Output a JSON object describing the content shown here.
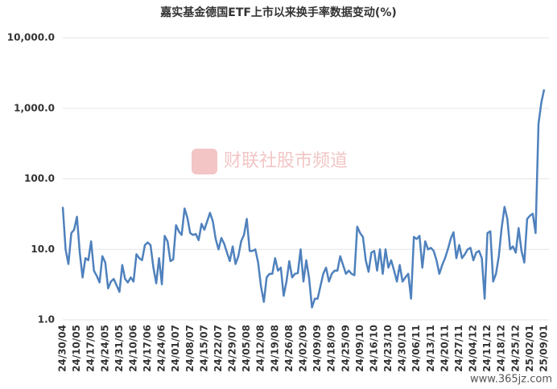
{
  "chart_data": {
    "type": "line",
    "title": "嘉实基金德国ETF上市以来换手率数据变动(%)",
    "watermark": "财联社股市频道",
    "site_mark": "www.365jz.com",
    "log_scale": true,
    "grid": true,
    "ylim": [
      1,
      10000
    ],
    "yticks": [
      {
        "value": 1,
        "label": "1.0"
      },
      {
        "value": 10,
        "label": "10.0"
      },
      {
        "value": 100,
        "label": "100.0"
      },
      {
        "value": 1000,
        "label": "1,000.0"
      },
      {
        "value": 10000,
        "label": "10,000.0"
      }
    ],
    "categories": [
      "24/30/04",
      null,
      null,
      null,
      null,
      "24/10/05",
      null,
      null,
      null,
      null,
      "24/17/05",
      null,
      null,
      null,
      null,
      "24/24/05",
      null,
      null,
      null,
      null,
      "24/31/05",
      null,
      null,
      null,
      null,
      "24/10/06",
      null,
      null,
      null,
      null,
      "24/17/06",
      null,
      null,
      null,
      null,
      "24/24/06",
      null,
      null,
      null,
      null,
      "24/01/07",
      null,
      null,
      null,
      null,
      "24/08/07",
      null,
      null,
      null,
      null,
      "24/15/07",
      null,
      null,
      null,
      null,
      "24/22/07",
      null,
      null,
      null,
      null,
      "24/29/07",
      null,
      null,
      null,
      null,
      "24/05/08",
      null,
      null,
      null,
      null,
      "24/12/08",
      null,
      null,
      null,
      null,
      "24/19/08",
      null,
      null,
      null,
      null,
      "24/26/08",
      null,
      null,
      null,
      null,
      "24/02/09",
      null,
      null,
      null,
      null,
      "24/09/09",
      null,
      null,
      null,
      null,
      "24/18/09",
      null,
      null,
      null,
      null,
      "24/25/09",
      null,
      null,
      null,
      null,
      "24/09/10",
      null,
      null,
      null,
      null,
      "24/16/10",
      null,
      null,
      null,
      null,
      "24/23/10",
      null,
      null,
      null,
      null,
      "24/30/10",
      null,
      null,
      null,
      null,
      "24/06/11",
      null,
      null,
      null,
      null,
      "24/13/11",
      null,
      null,
      null,
      null,
      "24/20/11",
      null,
      null,
      null,
      null,
      "24/27/11",
      null,
      null,
      null,
      null,
      "24/04/12",
      null,
      null,
      null,
      null,
      "24/11/12",
      null,
      null,
      null,
      null,
      "24/18/12",
      null,
      null,
      null,
      null,
      "24/25/12",
      null,
      null,
      null,
      null,
      "25/02/01",
      null,
      null,
      null,
      null,
      "25/09/01"
    ],
    "series": [
      {
        "color": "#4f81bd",
        "values": [
          40,
          10,
          6.2,
          17,
          19,
          29,
          9,
          4,
          7.5,
          7,
          13,
          5,
          4.2,
          3.4,
          8,
          6.5,
          2.8,
          3.5,
          3.8,
          3.1,
          2.5,
          6,
          3.8,
          3.4,
          4,
          3.5,
          8.5,
          7.5,
          7,
          11.5,
          12.5,
          11.5,
          5.5,
          3.3,
          7.5,
          3.2,
          15.5,
          13,
          6.8,
          7.2,
          22,
          18,
          16,
          38,
          28,
          17,
          16,
          16.5,
          13.5,
          23,
          19,
          25,
          33,
          25,
          14,
          10,
          14.5,
          12,
          9,
          6.8,
          11,
          6.2,
          8,
          13,
          16,
          27,
          9.5,
          9.5,
          10,
          6.5,
          3,
          1.8,
          4,
          4.5,
          4.5,
          7.5,
          5,
          5.5,
          2.2,
          3.5,
          6.8,
          4,
          4.5,
          4.6,
          10,
          3.5,
          7,
          3.9,
          1.5,
          2,
          2,
          3,
          4.5,
          5.5,
          3.5,
          4.5,
          5,
          5,
          8,
          6,
          4.5,
          5,
          4.5,
          4.3,
          21,
          17,
          15,
          7,
          4.8,
          9,
          9.5,
          5,
          10,
          4.5,
          10,
          5.5,
          7,
          5,
          3.5,
          6,
          3.5,
          4,
          4.5,
          2,
          15,
          14,
          15.5,
          5.5,
          13,
          10,
          10.5,
          9.5,
          7,
          4.5,
          6,
          7.5,
          10,
          14,
          17.5,
          7.5,
          11.5,
          7.5,
          8.5,
          10,
          10.5,
          7,
          9,
          9.5,
          7.5,
          2,
          17,
          18,
          3.5,
          4.5,
          8,
          20,
          40,
          27,
          10,
          11,
          9,
          20,
          9.5,
          6.5,
          27,
          30,
          32,
          17,
          600,
          1200,
          1850
        ]
      }
    ]
  }
}
